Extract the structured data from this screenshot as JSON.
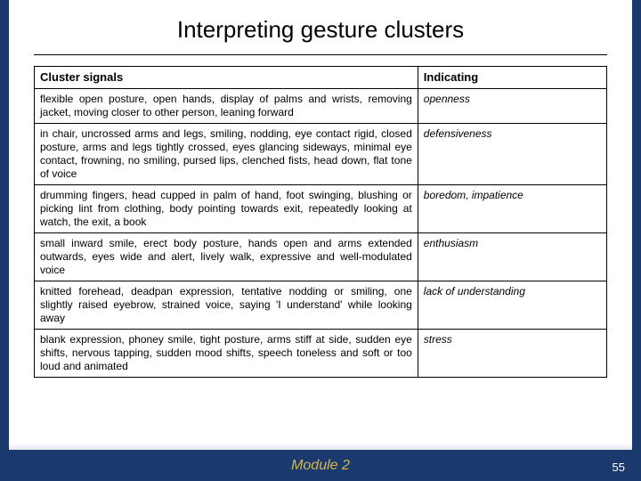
{
  "title": "Interpreting gesture clusters",
  "header": {
    "col1": "Cluster signals",
    "col2": "Indicating"
  },
  "rows": [
    {
      "signals": "flexible open posture, open hands, display of palms and wrists, removing jacket, moving closer to other person, leaning forward",
      "indicating": "openness"
    },
    {
      "signals": "in chair, uncrossed arms and legs, smiling, nodding, eye contact rigid, closed posture, arms and legs tightly crossed, eyes glancing sideways, minimal eye contact, frowning, no smiling, pursed lips, clenched fists, head down, flat tone of voice",
      "indicating": "defensiveness"
    },
    {
      "signals": "drumming fingers, head cupped in palm of hand, foot swinging, blushing or picking lint from clothing, body pointing towards exit, repeatedly looking at watch, the exit, a book",
      "indicating": "boredom, impatience"
    },
    {
      "signals": "small inward smile, erect body posture, hands open and arms extended outwards, eyes wide and alert, lively walk, expressive and well-modulated voice",
      "indicating": "enthusiasm"
    },
    {
      "signals": "knitted forehead, deadpan expression, tentative nodding or smiling, one slightly raised eyebrow, strained voice, saying 'I understand' while looking away",
      "indicating": "lack of understanding"
    },
    {
      "signals": "blank expression, phoney smile, tight posture, arms stiff at side, sudden eye shifts, nervous tapping, sudden mood shifts, speech toneless and soft or too loud and animated",
      "indicating": "stress"
    }
  ],
  "footer": {
    "module": "Module 2",
    "page": "55"
  }
}
